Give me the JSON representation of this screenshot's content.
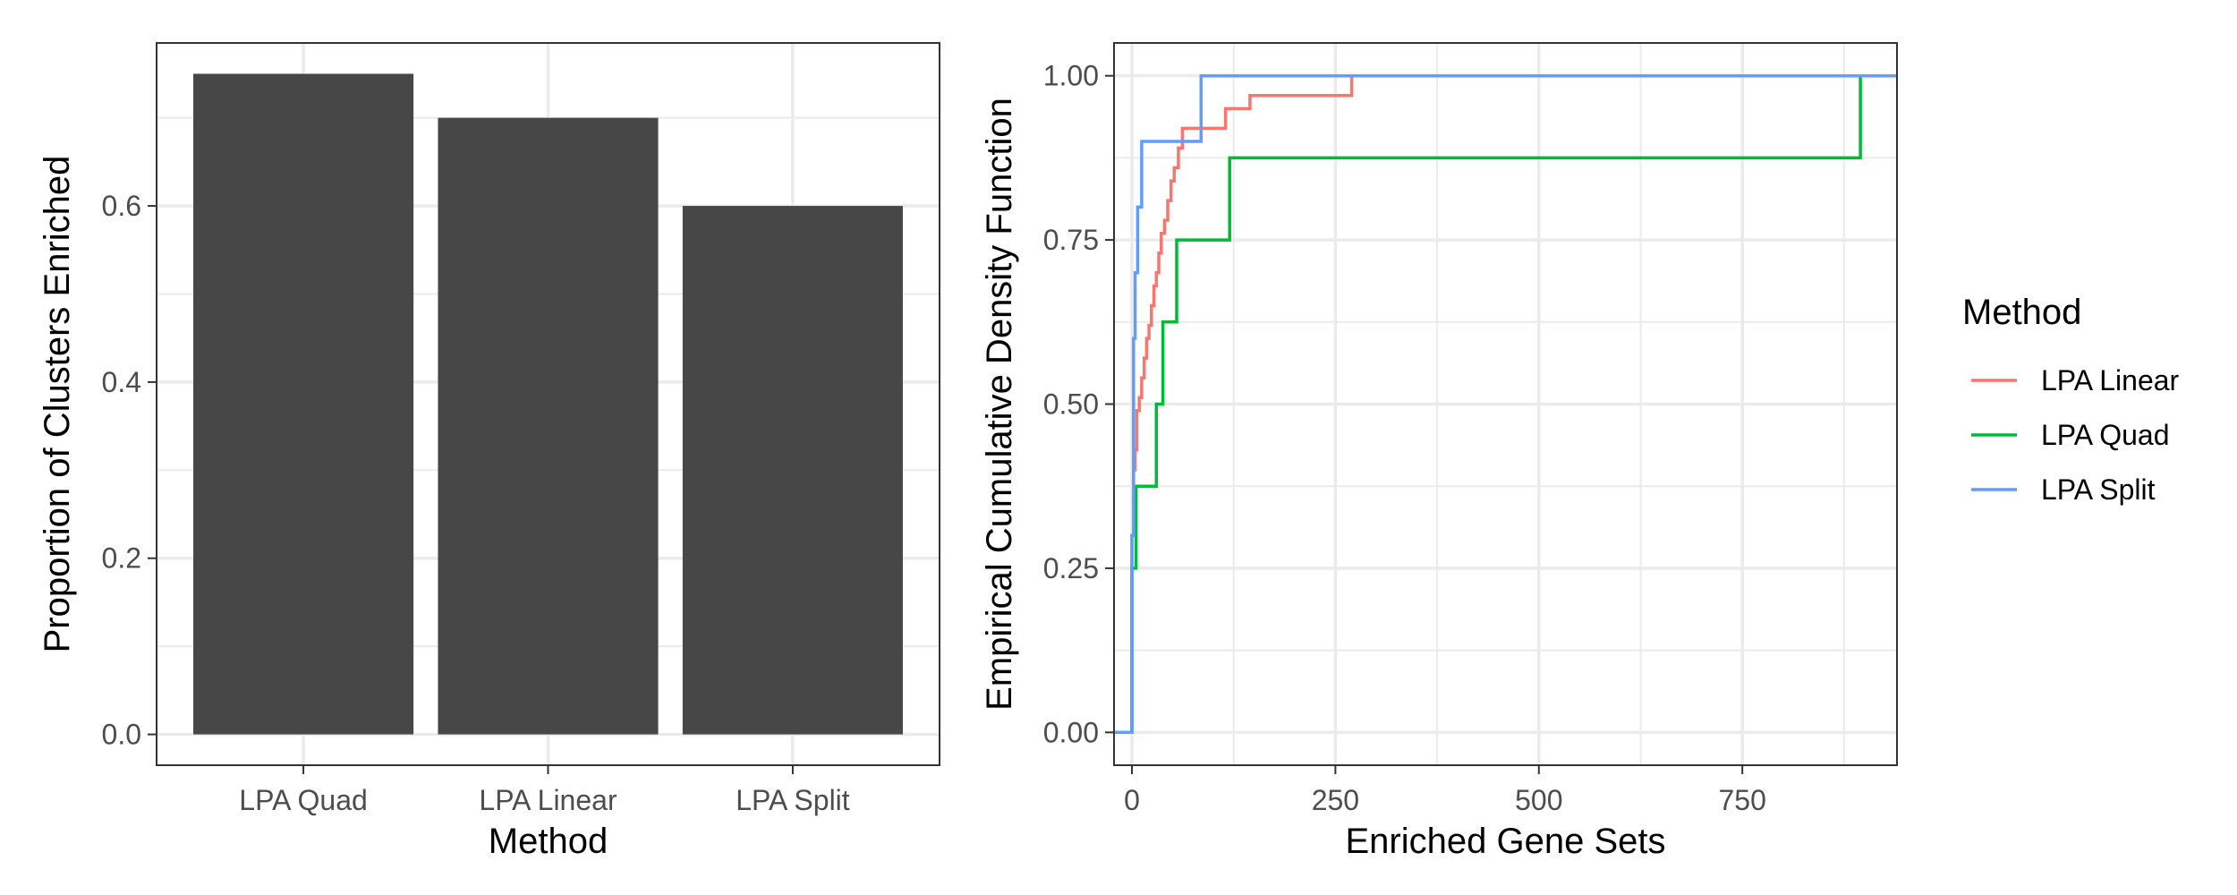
{
  "chart_data": [
    {
      "type": "bar",
      "categories": [
        "LPA Quad",
        "LPA Linear",
        "LPA Split"
      ],
      "values": [
        0.75,
        0.7,
        0.6
      ],
      "xlabel": "Method",
      "ylabel": "Proportion of Clusters Enriched",
      "ylim": [
        -0.035,
        0.785
      ],
      "yticks": [
        0.0,
        0.2,
        0.4,
        0.6
      ],
      "ytick_labels": [
        "0.0",
        "0.2",
        "0.4",
        "0.6"
      ],
      "bar_color": "#474747",
      "grid": true
    },
    {
      "type": "line",
      "step": "ecdf",
      "xlabel": "Enriched Gene Sets",
      "ylabel": "Empirical Cumulative Density Function",
      "xlim": [
        -22,
        940
      ],
      "ylim": [
        -0.05,
        1.05
      ],
      "xticks": [
        0,
        250,
        500,
        750
      ],
      "xtick_labels": [
        "0",
        "250",
        "500",
        "750"
      ],
      "yticks": [
        0.0,
        0.25,
        0.5,
        0.75,
        1.0
      ],
      "ytick_labels": [
        "0.00",
        "0.25",
        "0.50",
        "0.75",
        "1.00"
      ],
      "grid": true,
      "legend": {
        "title": "Method",
        "position": "right"
      },
      "series": [
        {
          "name": "LPA Linear",
          "color": "#F8766D",
          "x": [
            -22,
            0,
            2,
            4,
            6,
            9,
            12,
            15,
            18,
            21,
            24,
            27,
            30,
            33,
            36,
            40,
            44,
            48,
            52,
            57,
            62,
            70,
            80,
            95,
            115,
            145,
            270,
            940
          ],
          "y": [
            0,
            0.3,
            0.4,
            0.43,
            0.49,
            0.51,
            0.54,
            0.57,
            0.6,
            0.62,
            0.65,
            0.68,
            0.7,
            0.73,
            0.76,
            0.78,
            0.81,
            0.84,
            0.86,
            0.89,
            0.92,
            0.92,
            0.92,
            0.92,
            0.95,
            0.97,
            1.0,
            1.0
          ]
        },
        {
          "name": "LPA Quad",
          "color": "#00BA38",
          "x": [
            -22,
            0,
            5,
            30,
            38,
            55,
            120,
            895,
            940
          ],
          "y": [
            0,
            0.25,
            0.375,
            0.5,
            0.625,
            0.75,
            0.875,
            1.0,
            1.0
          ]
        },
        {
          "name": "LPA Split",
          "color": "#619CFF",
          "x": [
            -22,
            0,
            2,
            4,
            7,
            12,
            85,
            940
          ],
          "y": [
            0,
            0.3,
            0.6,
            0.7,
            0.8,
            0.9,
            1.0,
            1.0
          ]
        }
      ]
    }
  ]
}
